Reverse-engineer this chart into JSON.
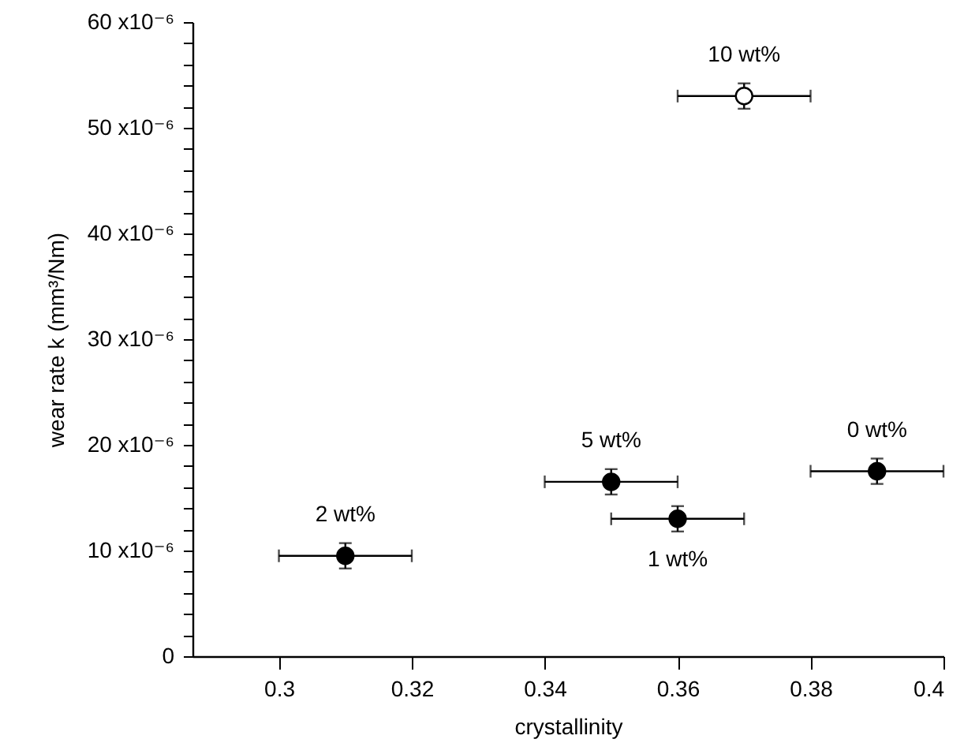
{
  "chart_data": {
    "type": "scatter",
    "xlabel": "crystallinity",
    "ylabel": "wear rate k (mm³/Nm)",
    "xlim": [
      0.287,
      0.4
    ],
    "xticks": [
      0.3,
      0.32,
      0.34,
      0.36,
      0.38,
      0.4
    ],
    "ylim": [
      0,
      6e-05
    ],
    "yticks": [
      0,
      {
        "value": 2e-06,
        "label": null
      },
      {
        "value": 4e-06,
        "label": null
      },
      {
        "value": 6e-06,
        "label": null
      },
      {
        "value": 8e-06,
        "label": null
      },
      {
        "value": 1e-05,
        "label": "10 x10⁻⁶"
      },
      {
        "value": 1.2e-05,
        "label": null
      },
      {
        "value": 1.4e-05,
        "label": null
      },
      {
        "value": 1.6e-05,
        "label": null
      },
      {
        "value": 1.8e-05,
        "label": null
      },
      {
        "value": 2e-05,
        "label": "20 x10⁻⁶"
      },
      {
        "value": 2.2e-05,
        "label": null
      },
      {
        "value": 2.4e-05,
        "label": null
      },
      {
        "value": 2.6e-05,
        "label": null
      },
      {
        "value": 2.8e-05,
        "label": null
      },
      {
        "value": 3e-05,
        "label": "30 x10⁻⁶"
      },
      {
        "value": 3.2e-05,
        "label": null
      },
      {
        "value": 3.4e-05,
        "label": null
      },
      {
        "value": 3.6e-05,
        "label": null
      },
      {
        "value": 3.8e-05,
        "label": null
      },
      {
        "value": 4e-05,
        "label": "40 x10⁻⁶"
      },
      {
        "value": 4.2e-05,
        "label": null
      },
      {
        "value": 4.4e-05,
        "label": null
      },
      {
        "value": 4.6e-05,
        "label": null
      },
      {
        "value": 4.8e-05,
        "label": null
      },
      {
        "value": 5e-05,
        "label": "50 x10⁻⁶"
      },
      {
        "value": 5.2e-05,
        "label": null
      },
      {
        "value": 5.4e-05,
        "label": null
      },
      {
        "value": 5.6e-05,
        "label": null
      },
      {
        "value": 5.8e-05,
        "label": null
      },
      {
        "value": 6e-05,
        "label": "60 x10⁻⁶"
      }
    ],
    "grid": false,
    "marker": "circle",
    "series": [
      {
        "color": "#000000",
        "x": [
          0.31,
          0.35,
          0.36,
          0.39
        ],
        "values": [
          9.5e-06,
          1.65e-05,
          1.3e-05,
          1.75e-05
        ],
        "errors": [
          1.2e-06,
          1.2e-06,
          1.2e-06,
          1.2e-06
        ],
        "xerrors": [
          0.01,
          0.01,
          0.01,
          0.01
        ]
      },
      {
        "color": "#ffffff",
        "x": [
          0.37
        ],
        "values": [
          5.3e-05
        ],
        "errors": [
          1.2e-06
        ],
        "xerrors": [
          0.01
        ]
      }
    ],
    "annotations": [
      {
        "text": "2 wt%",
        "x": 0.31,
        "y": 9.5e-06
      },
      {
        "text": "5 wt%",
        "x": 0.35,
        "y": 1.65e-05
      },
      {
        "text": "1 wt%",
        "x": 0.36,
        "y": 1.3e-05
      },
      {
        "text": "0 wt%",
        "x": 0.39,
        "y": 1.75e-05
      },
      {
        "text": "10 wt%",
        "x": 0.37,
        "y": 5.3e-05
      }
    ]
  }
}
